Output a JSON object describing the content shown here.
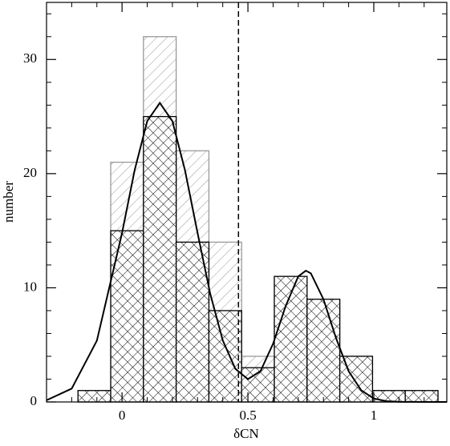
{
  "chart_data": {
    "type": "histogram",
    "x_label": "δCN",
    "y_label": "number",
    "bins": [
      -0.175,
      -0.045,
      0.085,
      0.215,
      0.345,
      0.475,
      0.605,
      0.735,
      0.865,
      0.995,
      1.125,
      1.255
    ],
    "series": [
      {
        "color": "#999999",
        "hatch": "single",
        "values": [
          1,
          21,
          32,
          22,
          14,
          4,
          11,
          9,
          4,
          1,
          1
        ]
      },
      {
        "color": "#000000",
        "hatch": "cross",
        "values": [
          1,
          15,
          25,
          14,
          8,
          3,
          11,
          9,
          4,
          1,
          1
        ]
      }
    ],
    "curve": {
      "color": "#000000",
      "x": [
        -0.3,
        -0.2,
        -0.1,
        0,
        0.05,
        0.1,
        0.15,
        0.2,
        0.25,
        0.3,
        0.35,
        0.4,
        0.45,
        0.5,
        0.55,
        0.6,
        0.65,
        0.7,
        0.73,
        0.75,
        0.8,
        0.85,
        0.9,
        0.95,
        1.0,
        1.05,
        1.1,
        1.2,
        1.29
      ],
      "y": [
        0.15,
        1.17,
        5.37,
        14.8,
        20.3,
        24.6,
        26.2,
        24.6,
        20.3,
        14.8,
        9.5,
        5.4,
        2.9,
        2.0,
        2.7,
        5.1,
        8.4,
        11.0,
        11.5,
        11.27,
        9.0,
        5.6,
        2.7,
        1.02,
        0.3,
        0.07,
        0.02,
        0,
        0
      ]
    },
    "vline_x": 0.4625,
    "xlim": [
      -0.3,
      1.29
    ],
    "ylim": [
      0,
      35
    ],
    "xticks": [
      0,
      0.5,
      1
    ],
    "yticks": [
      0,
      10,
      20,
      30
    ],
    "xminor_ticks": [
      -0.2,
      -0.1,
      0.1,
      0.2,
      0.3,
      0.4,
      0.6,
      0.7,
      0.8,
      0.9,
      1.1,
      1.2
    ],
    "yminor_ticks": [
      2,
      4,
      6,
      8,
      12,
      14,
      16,
      18,
      22,
      24,
      26,
      28,
      32,
      34
    ]
  }
}
